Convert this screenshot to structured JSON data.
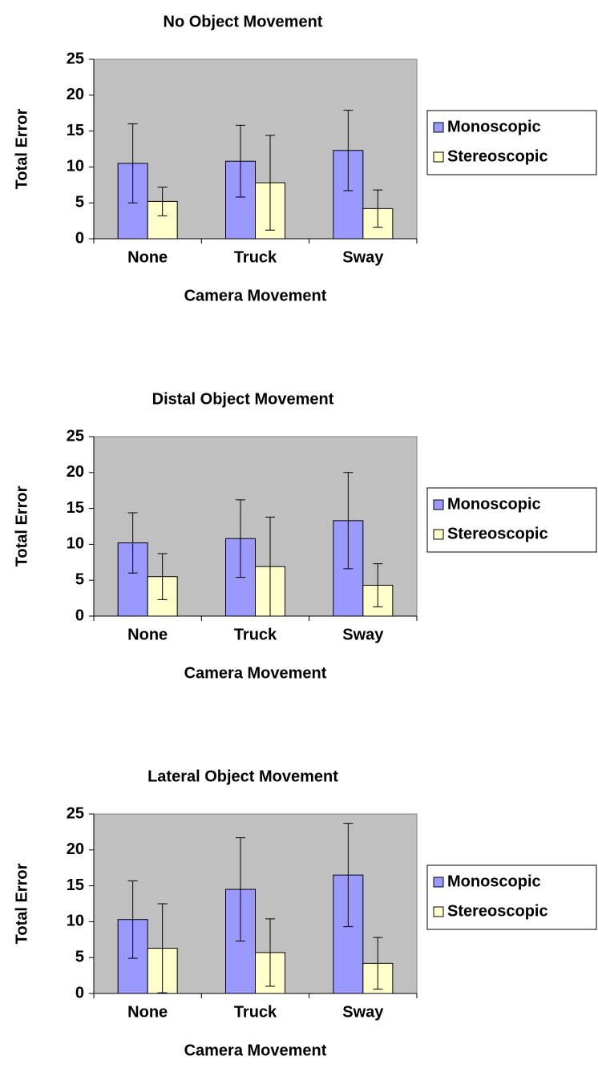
{
  "chart_data": [
    {
      "type": "bar",
      "title": "No Object Movement",
      "x_label": "Camera Movement",
      "y_label": "Total Error",
      "categories": [
        "None",
        "Truck",
        "Sway"
      ],
      "series": [
        {
          "name": "Monoscopic",
          "color": "#9999ff",
          "values": [
            10.5,
            10.8,
            12.3
          ],
          "errors": [
            5.5,
            5,
            5.6
          ]
        },
        {
          "name": "Stereoscopic",
          "color": "#ffffcc",
          "values": [
            5.2,
            7.8,
            4.2
          ],
          "errors": [
            2,
            6.6,
            2.6
          ]
        }
      ],
      "ylim": [
        0,
        25
      ],
      "yticks": [
        0,
        5,
        10,
        15,
        20,
        25
      ],
      "legend": "right",
      "plot_background": "#c0c0c0"
    },
    {
      "type": "bar",
      "title": "Distal Object Movement",
      "x_label": "Camera Movement",
      "y_label": "Total Error",
      "categories": [
        "None",
        "Truck",
        "Sway"
      ],
      "series": [
        {
          "name": "Monoscopic",
          "color": "#9999ff",
          "values": [
            10.2,
            10.8,
            13.3
          ],
          "errors": [
            4.2,
            5.4,
            6.7
          ]
        },
        {
          "name": "Stereoscopic",
          "color": "#ffffcc",
          "values": [
            5.5,
            6.9,
            4.3
          ],
          "errors": [
            3.2,
            6.9,
            3
          ]
        }
      ],
      "ylim": [
        0,
        25
      ],
      "yticks": [
        0,
        5,
        10,
        15,
        20,
        25
      ],
      "legend": "right",
      "plot_background": "#c0c0c0"
    },
    {
      "type": "bar",
      "title": "Lateral Object Movement",
      "x_label": "Camera Movement",
      "y_label": "Total Error",
      "categories": [
        "None",
        "Truck",
        "Sway"
      ],
      "series": [
        {
          "name": "Monoscopic",
          "color": "#9999ff",
          "values": [
            10.3,
            14.5,
            16.5
          ],
          "errors": [
            5.4,
            7.2,
            7.2
          ]
        },
        {
          "name": "Stereoscopic",
          "color": "#ffffcc",
          "values": [
            6.3,
            5.7,
            4.2
          ],
          "errors": [
            6.2,
            4.7,
            3.6
          ]
        }
      ],
      "ylim": [
        0,
        25
      ],
      "yticks": [
        0,
        5,
        10,
        15,
        20,
        25
      ],
      "legend": "right",
      "plot_background": "#c0c0c0"
    }
  ]
}
